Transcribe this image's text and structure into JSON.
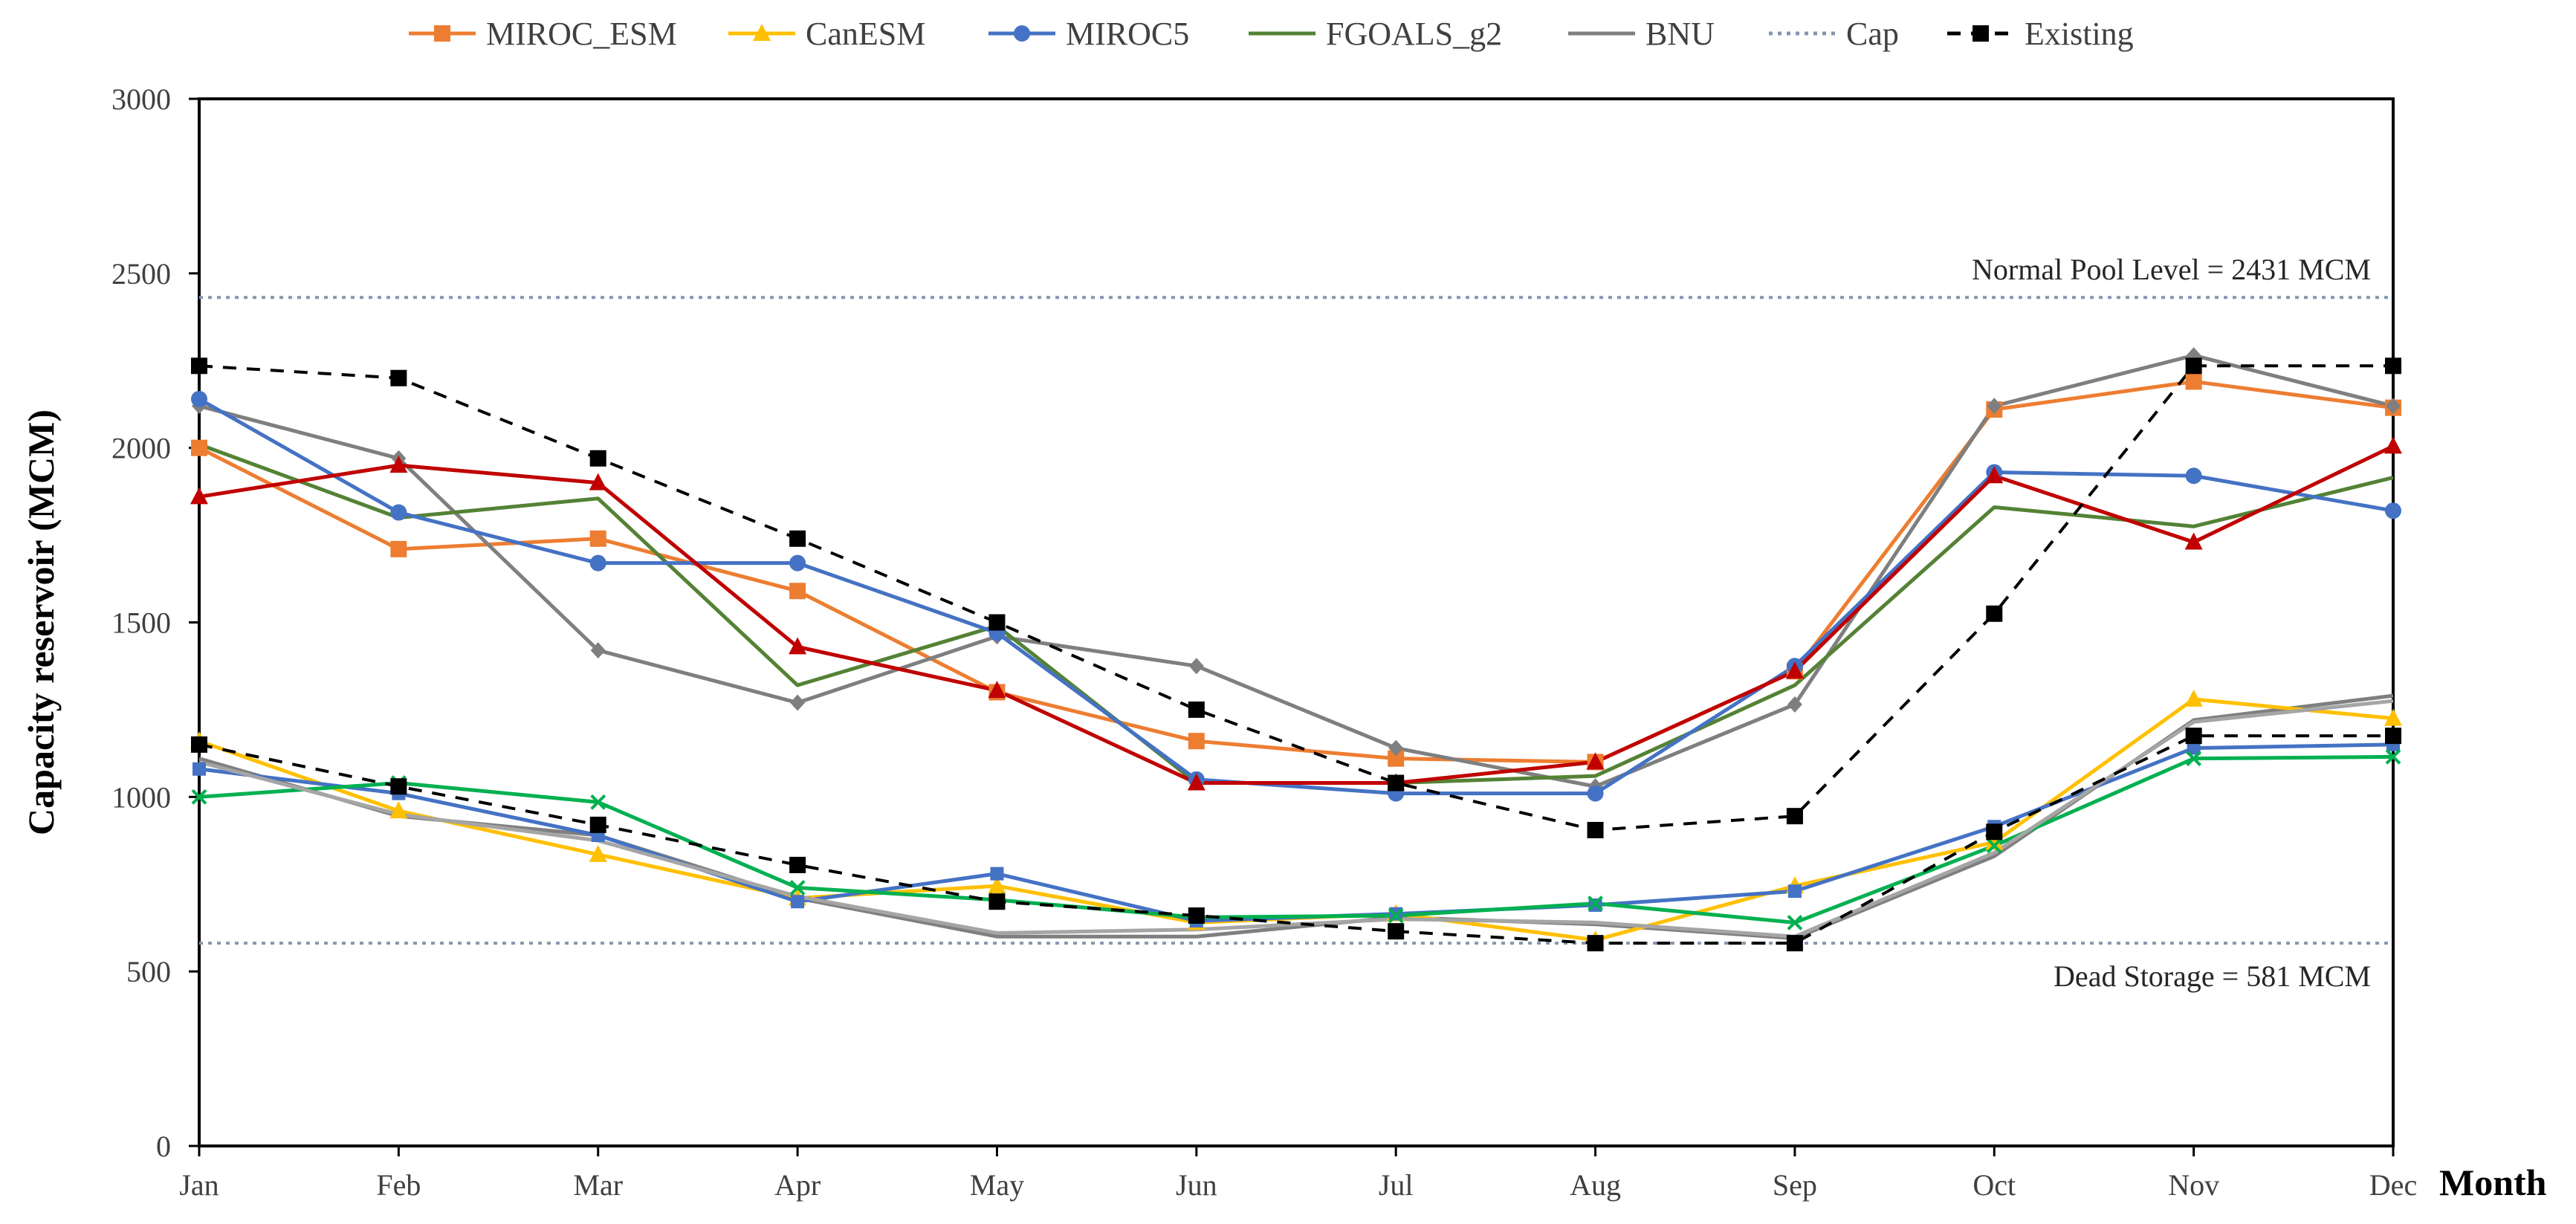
{
  "chart_data": {
    "type": "line",
    "title": "",
    "xlabel": "Month",
    "ylabel": "Capacity reservoir (MCM)",
    "ylim": [
      0,
      3000
    ],
    "yticks": [
      "0",
      "500",
      "1000",
      "1500",
      "2000",
      "2500",
      "3000"
    ],
    "grid": false,
    "legend_position": "top",
    "categories": [
      "Jan",
      "Feb",
      "Mar",
      "Apr",
      "May",
      "Jun",
      "Jul",
      "Aug",
      "Sep",
      "Oct",
      "Nov",
      "Dec"
    ],
    "legend": [
      {
        "label": "MIROC_ESM",
        "color": "#ED7D31",
        "marker": "square",
        "dash": "solid"
      },
      {
        "label": "CanESM",
        "color": "#FFC000",
        "marker": "triangle",
        "dash": "solid"
      },
      {
        "label": "MIROC5",
        "color": "#4472C4",
        "marker": "circle",
        "dash": "solid"
      },
      {
        "label": "FGOALS_g2",
        "color": "#548235",
        "marker": "none",
        "dash": "solid"
      },
      {
        "label": "BNU",
        "color": "#7F7F7F",
        "marker": "none",
        "dash": "solid"
      },
      {
        "label": "Cap",
        "color": "#8497B0",
        "marker": "none",
        "dash": "dotted"
      },
      {
        "label": "Existing",
        "color": "#000000",
        "marker": "square",
        "dash": "dashed"
      }
    ],
    "series": [
      {
        "name": "MIROC_ESM (upper)",
        "color": "#ED7D31",
        "marker": "square",
        "dash": "solid",
        "values": [
          2000,
          1710,
          1740,
          1590,
          1300,
          1160,
          1110,
          1100,
          1360,
          2110,
          2190,
          2115
        ]
      },
      {
        "name": "BNU (upper)",
        "color": "#7F7F7F",
        "marker": "diamond",
        "dash": "solid",
        "values": [
          2120,
          1970,
          1420,
          1270,
          1460,
          1375,
          1140,
          1030,
          1265,
          2120,
          2265,
          2120
        ]
      },
      {
        "name": "FGOALS_g2 (upper)",
        "color": "#548235",
        "marker": "none",
        "dash": "solid",
        "values": [
          2010,
          1800,
          1855,
          1320,
          1490,
          1040,
          1040,
          1060,
          1320,
          1830,
          1775,
          1915
        ]
      },
      {
        "name": "MIROC5 (upper)",
        "color": "#4472C4",
        "marker": "circle",
        "dash": "solid",
        "values": [
          2140,
          1815,
          1670,
          1670,
          1470,
          1050,
          1010,
          1010,
          1375,
          1930,
          1920,
          1820
        ]
      },
      {
        "name": "CanESM (upper)",
        "color": "#C00000",
        "marker": "triangle",
        "dash": "solid",
        "values": [
          1860,
          1950,
          1900,
          1430,
          1305,
          1040,
          1040,
          1100,
          1360,
          1920,
          1730,
          2005
        ]
      },
      {
        "name": "MIROC_ESM (lower)",
        "color": "#7F7F7F",
        "marker": "none",
        "dash": "solid",
        "values": [
          1110,
          945,
          890,
          710,
          600,
          600,
          655,
          635,
          595,
          830,
          1220,
          1290
        ]
      },
      {
        "name": "CanESM (lower)",
        "color": "#FFC000",
        "marker": "triangle",
        "dash": "solid",
        "values": [
          1160,
          960,
          835,
          710,
          745,
          640,
          665,
          590,
          745,
          870,
          1280,
          1225
        ]
      },
      {
        "name": "MIROC5 (lower)",
        "color": "#4472C4",
        "marker": "square-small",
        "dash": "solid",
        "values": [
          1080,
          1010,
          890,
          700,
          780,
          645,
          665,
          690,
          730,
          915,
          1140,
          1150
        ]
      },
      {
        "name": "FGOALS_g2 (lower)",
        "color": "#00B050",
        "marker": "x",
        "dash": "solid",
        "values": [
          1000,
          1040,
          985,
          740,
          705,
          655,
          660,
          695,
          640,
          860,
          1110,
          1115
        ]
      },
      {
        "name": "BNU (lower)",
        "color": "#A5A5A5",
        "marker": "none",
        "dash": "solid",
        "values": [
          1100,
          950,
          875,
          715,
          610,
          620,
          650,
          640,
          600,
          840,
          1215,
          1275
        ]
      },
      {
        "name": "Existing (upper)",
        "color": "#000000",
        "marker": "square",
        "dash": "dashed",
        "values": [
          2235,
          2200,
          1970,
          1740,
          1500,
          1250,
          1040,
          905,
          945,
          1525,
          2235,
          2235
        ]
      },
      {
        "name": "Existing (lower)",
        "color": "#000000",
        "marker": "square",
        "dash": "dashed",
        "values": [
          1150,
          1030,
          920,
          805,
          700,
          660,
          615,
          581,
          581,
          900,
          1175,
          1175
        ]
      }
    ],
    "reference_lines": [
      {
        "name": "Normal Pool Level",
        "value": 2431,
        "color": "#8497B0",
        "dash": "dotted",
        "label": "Normal Pool Level = 2431 MCM"
      },
      {
        "name": "Dead Storage",
        "value": 581,
        "color": "#8497B0",
        "dash": "dotted",
        "label": "Dead Storage = 581 MCM"
      }
    ]
  }
}
